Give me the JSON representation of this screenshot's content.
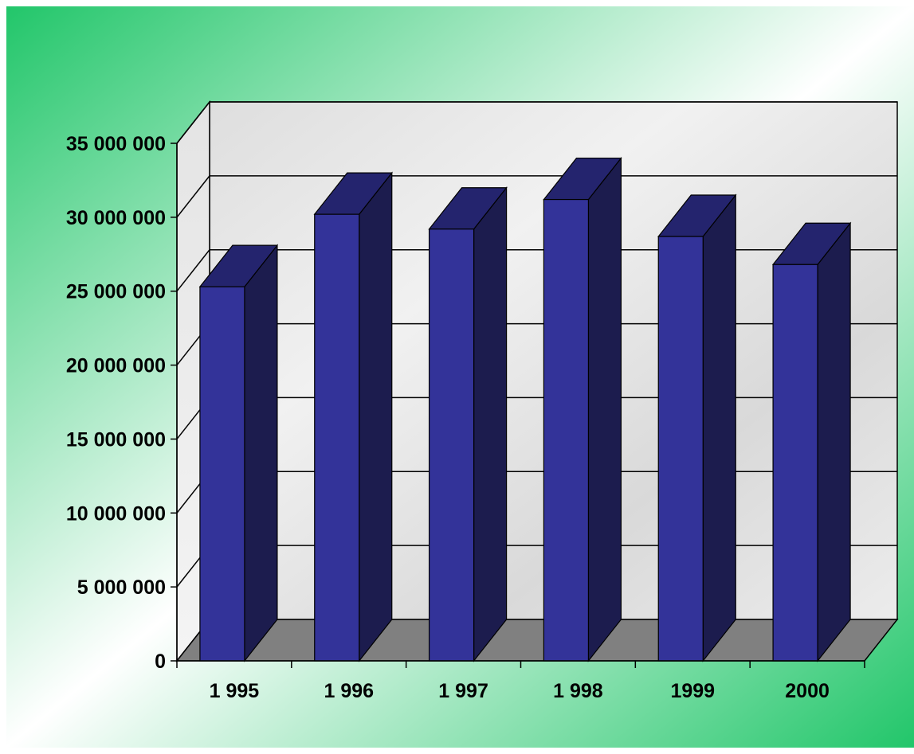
{
  "colors": {
    "bar_front": "#333399",
    "bar_top": "#24246e",
    "bar_side": "#1c1c4e",
    "floor": "#808080",
    "background_edge": "#22c66a",
    "background_center": "#ffffff"
  },
  "chart_data": {
    "type": "bar",
    "style": "3d-column",
    "categories": [
      "1 995",
      "1 996",
      "1 997",
      "1 998",
      "1999",
      "2000"
    ],
    "series": [
      {
        "values": [
          25300000,
          30200000,
          29200000,
          31200000,
          28700000,
          26800000
        ]
      }
    ],
    "ylim": [
      0,
      35000000
    ],
    "yticks": [
      {
        "value": 0,
        "label": "0"
      },
      {
        "value": 5000000,
        "label": "5 000 000"
      },
      {
        "value": 10000000,
        "label": "10 000 000"
      },
      {
        "value": 15000000,
        "label": "15 000 000"
      },
      {
        "value": 20000000,
        "label": "20 000 000"
      },
      {
        "value": 25000000,
        "label": "25 000 000"
      },
      {
        "value": 30000000,
        "label": "30 000 000"
      },
      {
        "value": 35000000,
        "label": "35 000 000"
      }
    ],
    "grid": true,
    "legend": "none"
  }
}
